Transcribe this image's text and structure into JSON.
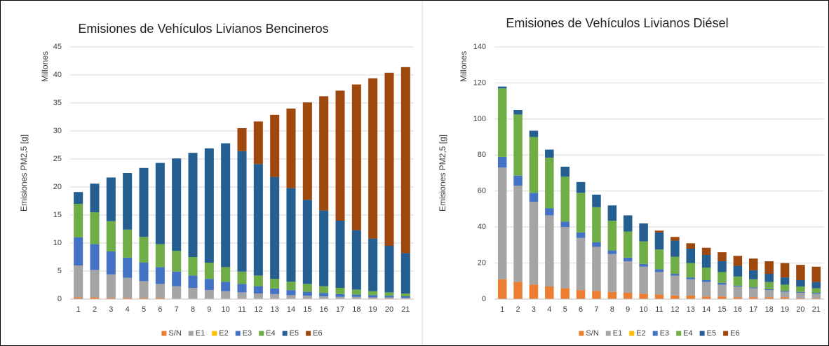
{
  "chart_data": [
    {
      "type": "bar",
      "stacked": true,
      "title": "Emisiones de Vehículos Livianos Bencineros",
      "y_label": "Emisiones PM2,5 [g]",
      "y_unit_label": "Millones",
      "categories": [
        "1",
        "2",
        "3",
        "4",
        "5",
        "6",
        "7",
        "8",
        "9",
        "10",
        "11",
        "12",
        "13",
        "14",
        "15",
        "16",
        "17",
        "18",
        "19",
        "20",
        "21"
      ],
      "ylim": [
        0,
        45
      ],
      "yticks": [
        0,
        5,
        10,
        15,
        20,
        25,
        30,
        35,
        40,
        45
      ],
      "grid": true,
      "legend": "bottom",
      "series": [
        {
          "name": "S/N",
          "color": "#ed7d31",
          "values": [
            0.3,
            0.3,
            0.2,
            0.2,
            0.2,
            0.2,
            0.1,
            0.1,
            0.1,
            0.1,
            0.1,
            0.1,
            0.1,
            0.1,
            0.1,
            0.1,
            0.1,
            0.1,
            0.1,
            0.1,
            0.1
          ]
        },
        {
          "name": "E1",
          "color": "#a5a5a5",
          "values": [
            5.7,
            4.9,
            4.2,
            3.6,
            3.0,
            2.5,
            2.2,
            1.9,
            1.5,
            1.3,
            1.1,
            0.9,
            0.8,
            0.6,
            0.5,
            0.4,
            0.3,
            0.3,
            0.2,
            0.2,
            0.1
          ]
        },
        {
          "name": "E2",
          "color": "#ffc000",
          "values": [
            0,
            0,
            0,
            0,
            0,
            0,
            0,
            0,
            0,
            0,
            0,
            0,
            0,
            0,
            0,
            0,
            0,
            0,
            0,
            0,
            0
          ]
        },
        {
          "name": "E3",
          "color": "#4472c4",
          "values": [
            5.0,
            4.6,
            4.1,
            3.6,
            3.3,
            3.0,
            2.6,
            2.2,
            2.0,
            1.7,
            1.5,
            1.3,
            1.0,
            0.9,
            0.7,
            0.6,
            0.5,
            0.4,
            0.4,
            0.3,
            0.3
          ]
        },
        {
          "name": "E4",
          "color": "#70ad47",
          "values": [
            6.0,
            5.7,
            5.4,
            5.0,
            4.6,
            4.1,
            3.7,
            3.3,
            2.9,
            2.6,
            2.2,
            1.9,
            1.7,
            1.5,
            1.4,
            1.2,
            1.1,
            0.9,
            0.7,
            0.6,
            0.5
          ]
        },
        {
          "name": "E5",
          "color": "#255e91",
          "values": [
            2.1,
            5.1,
            7.8,
            10.1,
            12.3,
            14.5,
            16.5,
            18.6,
            20.4,
            22.1,
            21.5,
            19.9,
            18.2,
            16.7,
            15.0,
            13.5,
            12.0,
            10.6,
            9.4,
            8.3,
            7.2
          ]
        },
        {
          "name": "E6",
          "color": "#9e480e",
          "values": [
            0,
            0,
            0,
            0,
            0,
            0,
            0,
            0,
            0,
            0,
            4.1,
            7.6,
            11.1,
            14.2,
            17.4,
            20.4,
            23.2,
            26.0,
            28.6,
            30.9,
            33.2
          ]
        }
      ]
    },
    {
      "type": "bar",
      "stacked": true,
      "title": "Emisiones de Vehículos Livianos Diésel",
      "y_label": "Emisiones PM2,5 [g]",
      "y_unit_label": "Millones",
      "categories": [
        "1",
        "2",
        "3",
        "4",
        "5",
        "6",
        "7",
        "8",
        "9",
        "10",
        "11",
        "12",
        "13",
        "14",
        "15",
        "16",
        "17",
        "18",
        "19",
        "20",
        "21"
      ],
      "ylim": [
        0,
        140
      ],
      "yticks": [
        0,
        20,
        40,
        60,
        80,
        100,
        120,
        140
      ],
      "grid": true,
      "legend": "bottom",
      "series": [
        {
          "name": "S/N",
          "color": "#ed7d31",
          "values": [
            11,
            9.5,
            8,
            7,
            6,
            5,
            4.5,
            4,
            3.5,
            3,
            2.5,
            2,
            2,
            1.5,
            1.5,
            1,
            1,
            1,
            1,
            0.5,
            0.5
          ]
        },
        {
          "name": "E1",
          "color": "#a5a5a5",
          "values": [
            62,
            53.5,
            46,
            39.5,
            34,
            29,
            24.5,
            21,
            17.5,
            15,
            12.5,
            11,
            9,
            8,
            6.5,
            6,
            5,
            4,
            3,
            3,
            2.5
          ]
        },
        {
          "name": "E2",
          "color": "#ffc000",
          "values": [
            0,
            0,
            0,
            0,
            0,
            0,
            0,
            0,
            0,
            0,
            0,
            0,
            0,
            0,
            0,
            0,
            0,
            0,
            0,
            0,
            0
          ]
        },
        {
          "name": "E3",
          "color": "#4472c4",
          "values": [
            6,
            5.5,
            5,
            4,
            3,
            3,
            2.5,
            2,
            2,
            1.5,
            1.5,
            1,
            1,
            1,
            1,
            0.5,
            0.5,
            0.5,
            0.5,
            0.5,
            0.5
          ]
        },
        {
          "name": "E4",
          "color": "#70ad47",
          "values": [
            38,
            34,
            31,
            28,
            25,
            22,
            19.5,
            16.5,
            14.5,
            12.5,
            11,
            9.5,
            8,
            7,
            6,
            5,
            4.5,
            4,
            3.5,
            3,
            2.5
          ]
        },
        {
          "name": "E5",
          "color": "#255e91",
          "values": [
            1,
            2.5,
            3.5,
            4.5,
            5.5,
            6,
            7,
            8.5,
            9,
            10,
            9.5,
            9,
            8,
            7,
            6,
            6,
            5,
            4.5,
            4,
            3.5,
            3.5
          ]
        },
        {
          "name": "E6",
          "color": "#9e480e",
          "values": [
            0,
            0,
            0,
            0,
            0,
            0,
            0,
            0,
            0,
            0,
            1,
            2,
            3,
            4,
            5,
            5.5,
            6.5,
            7,
            8,
            8.5,
            8.5
          ]
        }
      ]
    }
  ]
}
